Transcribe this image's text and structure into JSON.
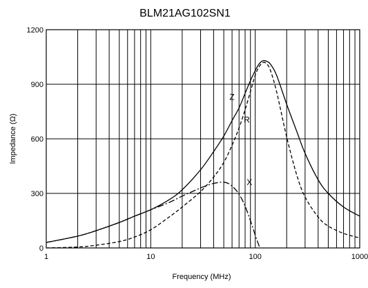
{
  "chart_data": {
    "type": "line",
    "title": "BLM21AG102SN1",
    "xlabel": "Frequency (MHz)",
    "ylabel": "Impedance (Ω)",
    "xscale": "log",
    "xlim": [
      1,
      1000
    ],
    "ylim": [
      0,
      1200
    ],
    "xticks": [
      1,
      10,
      100,
      1000
    ],
    "xtick_labels": [
      "1",
      "10",
      "100",
      "1000"
    ],
    "yticks": [
      0,
      300,
      600,
      900,
      1200
    ],
    "ytick_labels": [
      "0",
      "300",
      "600",
      "900",
      "1200"
    ],
    "grid": true,
    "series": [
      {
        "name": "Z",
        "style": "solid",
        "x": [
          1,
          2,
          3,
          5,
          7,
          10,
          15,
          20,
          30,
          40,
          50,
          60,
          70,
          80,
          90,
          100,
          110,
          120,
          130,
          140,
          160,
          200,
          250,
          300,
          400,
          500,
          700,
          1000
        ],
        "values": [
          30,
          65,
          95,
          140,
          175,
          210,
          265,
          320,
          430,
          530,
          615,
          700,
          770,
          850,
          920,
          975,
          1015,
          1030,
          1025,
          1010,
          950,
          790,
          640,
          520,
          375,
          300,
          225,
          175
        ]
      },
      {
        "name": "R",
        "style": "dashed",
        "x": [
          1,
          2,
          3,
          5,
          7,
          10,
          15,
          20,
          30,
          40,
          50,
          60,
          70,
          80,
          90,
          100,
          110,
          120,
          130,
          140,
          160,
          200,
          250,
          300,
          400,
          500,
          700,
          1000
        ],
        "values": [
          0,
          5,
          15,
          35,
          60,
          100,
          170,
          225,
          310,
          390,
          470,
          565,
          660,
          760,
          860,
          950,
          1000,
          1020,
          1010,
          975,
          860,
          610,
          400,
          280,
          170,
          120,
          80,
          55
        ]
      },
      {
        "name": "X",
        "style": "dashdot",
        "x": [
          1,
          2,
          3,
          5,
          7,
          10,
          15,
          20,
          25,
          30,
          35,
          40,
          45,
          50,
          55,
          60,
          65,
          70,
          75,
          80,
          85,
          90,
          95,
          100,
          105,
          110
        ],
        "values": [
          30,
          65,
          95,
          140,
          175,
          210,
          250,
          285,
          310,
          330,
          345,
          355,
          360,
          362,
          355,
          340,
          320,
          295,
          265,
          230,
          190,
          150,
          110,
          70,
          35,
          5
        ]
      }
    ],
    "annotations": [
      {
        "text": "Z",
        "x": 60,
        "y": 815
      },
      {
        "text": "R",
        "x": 83,
        "y": 690
      },
      {
        "text": "X",
        "x": 88,
        "y": 345
      }
    ]
  }
}
